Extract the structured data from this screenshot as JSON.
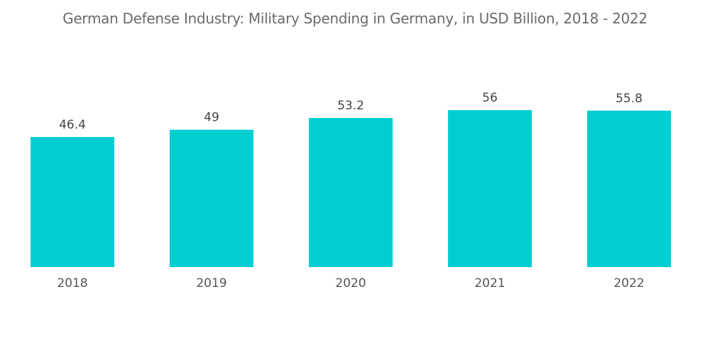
{
  "chart_data": {
    "type": "bar",
    "title": "German Defense Industry: Military Spending in Germany, in USD Billion, 2018 - 2022",
    "categories": [
      "2018",
      "2019",
      "2020",
      "2021",
      "2022"
    ],
    "values": [
      46.4,
      49,
      53.2,
      56,
      55.8
    ],
    "data_labels": [
      "46.4",
      "49",
      "53.2",
      "56",
      "55.8"
    ],
    "xlabel": "",
    "ylabel": "",
    "ylim": [
      0,
      56
    ],
    "grid": false,
    "legend": "none",
    "bar_color": "#00ced1"
  }
}
